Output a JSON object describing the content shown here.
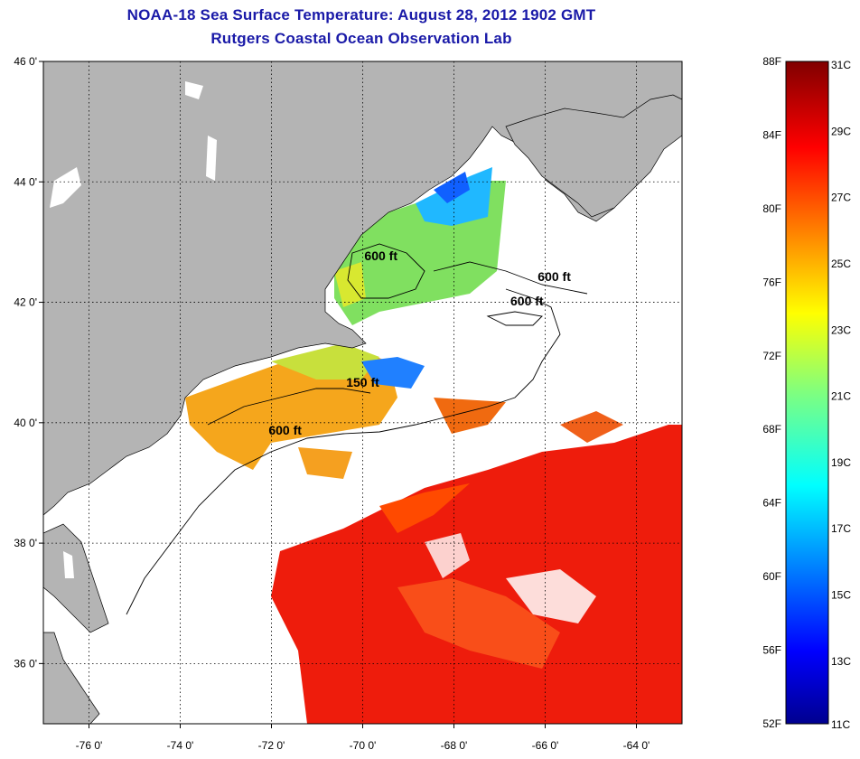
{
  "title": "NOAA-18 Sea Surface Temperature:  August 28, 2012 1902 GMT",
  "subtitle": "Rutgers Coastal Ocean Observation Lab",
  "map": {
    "lon_range": [
      -77.0,
      -63.0
    ],
    "lat_range": [
      35.0,
      46.0
    ],
    "lat_labels": [
      "46 0'",
      "44 0'",
      "42 0'",
      "40 0'",
      "38 0'",
      "36 0'"
    ],
    "lat_values": [
      46,
      44,
      42,
      40,
      38,
      36
    ],
    "lon_labels": [
      "-76 0'",
      "-74 0'",
      "-72 0'",
      "-70 0'",
      "-68 0'",
      "-66 0'",
      "-64 0'"
    ],
    "lon_values": [
      -76,
      -74,
      -72,
      -70,
      -68,
      -66,
      -64
    ],
    "contour_labels": [
      {
        "text": "600 ft",
        "lon": -69.6,
        "lat": 42.7
      },
      {
        "text": "600 ft",
        "lon": -65.8,
        "lat": 42.35
      },
      {
        "text": "600 ft",
        "lon": -66.4,
        "lat": 41.95
      },
      {
        "text": "150 ft",
        "lon": -70.0,
        "lat": 40.6
      },
      {
        "text": "600 ft",
        "lon": -71.7,
        "lat": 39.8
      }
    ],
    "colors": {
      "land": "#b4b4b4",
      "ocean_cloud": "#ffffff",
      "grid": "#000000"
    }
  },
  "colorbar": {
    "f_labels": [
      "88F",
      "84F",
      "80F",
      "76F",
      "72F",
      "68F",
      "64F",
      "60F",
      "56F",
      "52F"
    ],
    "c_labels": [
      "31C",
      "29C",
      "27C",
      "25C",
      "23C",
      "21C",
      "19C",
      "17C",
      "15C",
      "13C",
      "11C"
    ],
    "f_values": [
      88,
      84,
      80,
      76,
      72,
      68,
      64,
      60,
      56,
      52
    ],
    "c_values": [
      31,
      29,
      27,
      25,
      23,
      21,
      19,
      17,
      15,
      13,
      11
    ],
    "f_range": [
      52,
      88
    ]
  }
}
